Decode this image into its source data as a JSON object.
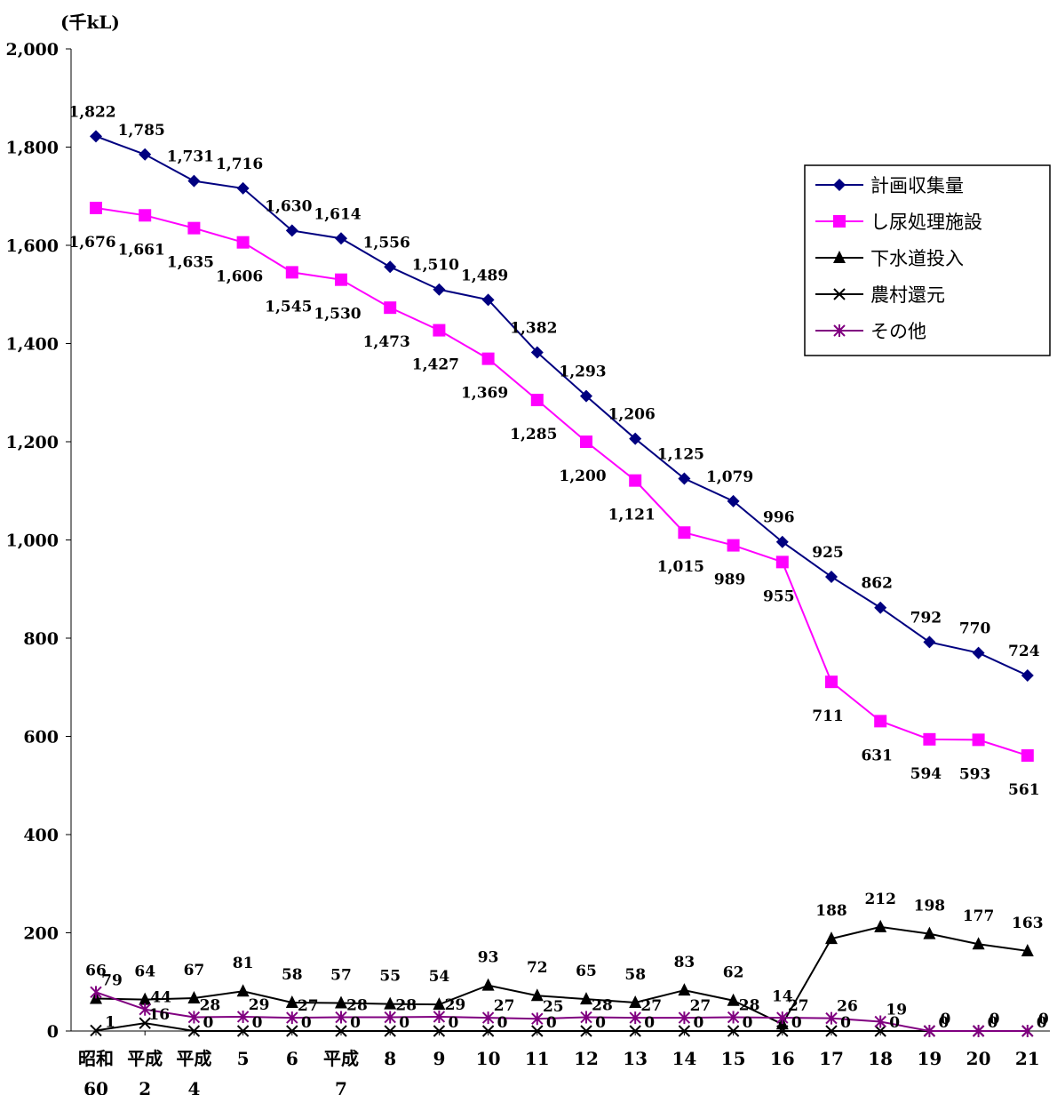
{
  "chart_data": {
    "type": "line",
    "ylabel": "(千kL)",
    "ylim": [
      0,
      2000
    ],
    "yticks": [
      "0",
      "200",
      "400",
      "600",
      "800",
      "1,000",
      "1,200",
      "1,400",
      "1,600",
      "1,800",
      "2,000"
    ],
    "categories": [
      [
        "昭和",
        "60"
      ],
      [
        "平成",
        "2"
      ],
      [
        "平成",
        "4"
      ],
      [
        "5"
      ],
      [
        "6"
      ],
      [
        "平成",
        "7"
      ],
      [
        "8"
      ],
      [
        "9"
      ],
      [
        "10"
      ],
      [
        "11"
      ],
      [
        "12"
      ],
      [
        "13"
      ],
      [
        "14"
      ],
      [
        "15"
      ],
      [
        "16"
      ],
      [
        "17"
      ],
      [
        "18"
      ],
      [
        "19"
      ],
      [
        "20"
      ],
      [
        "21"
      ]
    ],
    "legend_position": "right",
    "grid": false,
    "series": [
      {
        "name": "計画収集量",
        "color": "#000080",
        "marker": "diamond",
        "values": [
          1822,
          1785,
          1731,
          1716,
          1630,
          1614,
          1556,
          1510,
          1489,
          1382,
          1293,
          1206,
          1125,
          1079,
          996,
          925,
          862,
          792,
          770,
          724
        ],
        "labels": [
          "1,822",
          "1,785",
          "1,731",
          "1,716",
          "1,630",
          "1,614",
          "1,556",
          "1,510",
          "1,489",
          "1,382",
          "1,293",
          "1,206",
          "1,125",
          "1,079",
          "996",
          "925",
          "862",
          "792",
          "770",
          "724"
        ]
      },
      {
        "name": "し尿処理施設",
        "color": "#ff00ff",
        "marker": "square",
        "values": [
          1676,
          1661,
          1635,
          1606,
          1545,
          1530,
          1473,
          1427,
          1369,
          1285,
          1200,
          1121,
          1015,
          989,
          955,
          711,
          631,
          594,
          593,
          561
        ],
        "labels": [
          "1,676",
          "1,661",
          "1,635",
          "1,606",
          "1,545",
          "1,530",
          "1,473",
          "1,427",
          "1,369",
          "1,285",
          "1,200",
          "1,121",
          "1,015",
          "989",
          "955",
          "711",
          "631",
          "594",
          "593",
          "561"
        ]
      },
      {
        "name": "下水道投入",
        "color": "#000000",
        "marker": "triangle",
        "values": [
          66,
          64,
          67,
          81,
          58,
          57,
          55,
          54,
          93,
          72,
          65,
          58,
          83,
          62,
          14,
          188,
          212,
          198,
          177,
          163
        ],
        "labels": [
          "66",
          "64",
          "67",
          "81",
          "58",
          "57",
          "55",
          "54",
          "93",
          "72",
          "65",
          "58",
          "83",
          "62",
          "14",
          "188",
          "212",
          "198",
          "177",
          "163"
        ]
      },
      {
        "name": "農村還元",
        "color": "#000000",
        "marker": "x",
        "values": [
          1,
          16,
          0,
          0,
          0,
          0,
          0,
          0,
          0,
          0,
          0,
          0,
          0,
          0,
          0,
          0,
          0,
          0,
          0,
          0
        ],
        "labels": [
          "1",
          "16",
          "0",
          "0",
          "0",
          "0",
          "0",
          "0",
          "0",
          "0",
          "0",
          "0",
          "0",
          "0",
          "0",
          "0",
          "0",
          "0",
          "0",
          "0"
        ]
      },
      {
        "name": "その他",
        "color": "#800080",
        "marker": "asterisk",
        "values": [
          79,
          44,
          28,
          29,
          27,
          28,
          28,
          29,
          27,
          25,
          28,
          27,
          27,
          28,
          27,
          26,
          19,
          0,
          0,
          0
        ],
        "labels": [
          "79",
          "44",
          "28",
          "29",
          "27",
          "28",
          "28",
          "29",
          "27",
          "25",
          "28",
          "27",
          "27",
          "28",
          "27",
          "26",
          "19",
          "0",
          "0",
          "0"
        ]
      }
    ]
  }
}
